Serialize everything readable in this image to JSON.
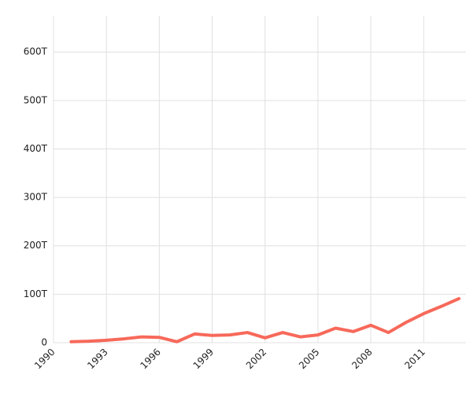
{
  "chart_data": {
    "type": "line",
    "x": [
      1991,
      1992,
      1993,
      1994,
      1995,
      1996,
      1997,
      1998,
      1999,
      2000,
      2001,
      2002,
      2003,
      2004,
      2005,
      2006,
      2007,
      2008,
      2009,
      2010,
      2011,
      2012,
      2013
    ],
    "series": [
      {
        "color": "#f7695a",
        "values": [
          2000000000000,
          3000000000000,
          5000000000000,
          8000000000000,
          12000000000000,
          11000000000000,
          2000000000000,
          18000000000000,
          15000000000000,
          16000000000000,
          21000000000000,
          10000000000000,
          21000000000000,
          12000000000000,
          16000000000000,
          30000000000000,
          23000000000000,
          36000000000000,
          21000000000000,
          42000000000000,
          60000000000000,
          75000000000000,
          91000000000000
        ]
      }
    ],
    "xlim": [
      1990,
      2013.4
    ],
    "xticks": [
      1990,
      1993,
      1996,
      1999,
      2002,
      2005,
      2008,
      2011
    ],
    "ylim": [
      0,
      675000000000000
    ],
    "yticks": [
      0,
      {
        "value": 100000000000000,
        "label": "100T"
      },
      {
        "value": 200000000000000,
        "label": "200T"
      },
      {
        "value": 300000000000000,
        "label": "300T"
      },
      {
        "value": 400000000000000,
        "label": "400T"
      },
      {
        "value": 500000000000000,
        "label": "500T"
      },
      {
        "value": 600000000000000,
        "label": "600T"
      }
    ],
    "grid": true
  }
}
